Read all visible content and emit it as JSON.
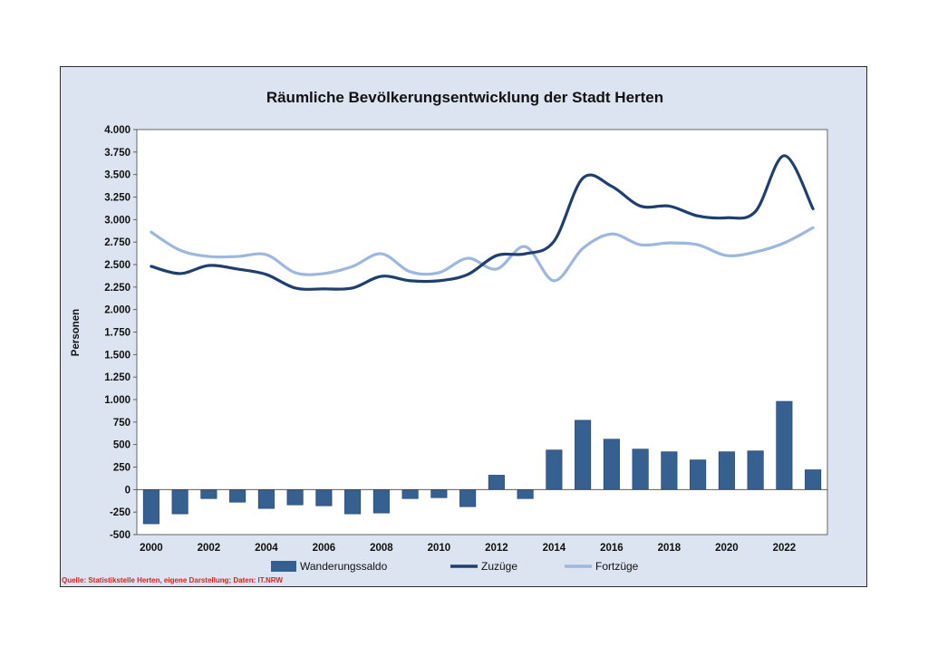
{
  "colors": {
    "frame_bg": "#dbe4f0",
    "plot_bg": "#ffffff",
    "bar": "#35608f",
    "zuzuege": "#1f3f6e",
    "fortzuege": "#9db7de",
    "source_text": "#e0201b"
  },
  "chart_data": {
    "type": "bar+line",
    "title": "Räumliche Bevölkerungsentwicklung der Stadt Herten",
    "ylabel": "Personen",
    "xlabel": "",
    "ylim": [
      -500,
      4000
    ],
    "yticks": [
      -500,
      -250,
      0,
      250,
      500,
      750,
      1000,
      1250,
      1500,
      1750,
      2000,
      2250,
      2500,
      2750,
      3000,
      3250,
      3500,
      3750,
      4000
    ],
    "ytick_labels": [
      "-500",
      "-250",
      "0",
      "250",
      "500",
      "750",
      "1.000",
      "1.250",
      "1.500",
      "1.750",
      "2.000",
      "2.250",
      "2.500",
      "2.750",
      "3.000",
      "3.250",
      "3.500",
      "3.750",
      "4.000"
    ],
    "categories": [
      "2000",
      "2001",
      "2002",
      "2003",
      "2004",
      "2005",
      "2006",
      "2007",
      "2008",
      "2009",
      "2010",
      "2011",
      "2012",
      "2013",
      "2014",
      "2015",
      "2016",
      "2017",
      "2018",
      "2019",
      "2020",
      "2021",
      "2022",
      "2023"
    ],
    "xtick_labels": [
      "2000",
      "",
      "2002",
      "",
      "2004",
      "",
      "2006",
      "",
      "2008",
      "",
      "2010",
      "",
      "2012",
      "",
      "2014",
      "",
      "2016",
      "",
      "2018",
      "",
      "2020",
      "",
      "2022",
      ""
    ],
    "series": [
      {
        "name": "Wanderungssaldo",
        "kind": "bar",
        "values": [
          -380,
          -270,
          -100,
          -140,
          -210,
          -170,
          -180,
          -270,
          -260,
          -100,
          -90,
          -190,
          160,
          -100,
          440,
          770,
          560,
          450,
          420,
          330,
          420,
          430,
          980,
          220
        ]
      },
      {
        "name": "Zuzüge",
        "kind": "line",
        "values": [
          2480,
          2400,
          2490,
          2450,
          2390,
          2240,
          2230,
          2240,
          2370,
          2320,
          2320,
          2390,
          2600,
          2620,
          2760,
          3460,
          3370,
          3150,
          3150,
          3040,
          3020,
          3090,
          3710,
          3120
        ]
      },
      {
        "name": "Fortzüge",
        "kind": "line",
        "values": [
          2860,
          2660,
          2590,
          2590,
          2610,
          2410,
          2400,
          2480,
          2620,
          2420,
          2410,
          2570,
          2450,
          2700,
          2320,
          2680,
          2840,
          2720,
          2740,
          2720,
          2600,
          2640,
          2740,
          2910
        ]
      }
    ],
    "legend_position": "bottom",
    "grid": false
  },
  "source_note": "Quelle: Statistikstelle Herten, eigene Darstellung; Daten: IT.NRW"
}
